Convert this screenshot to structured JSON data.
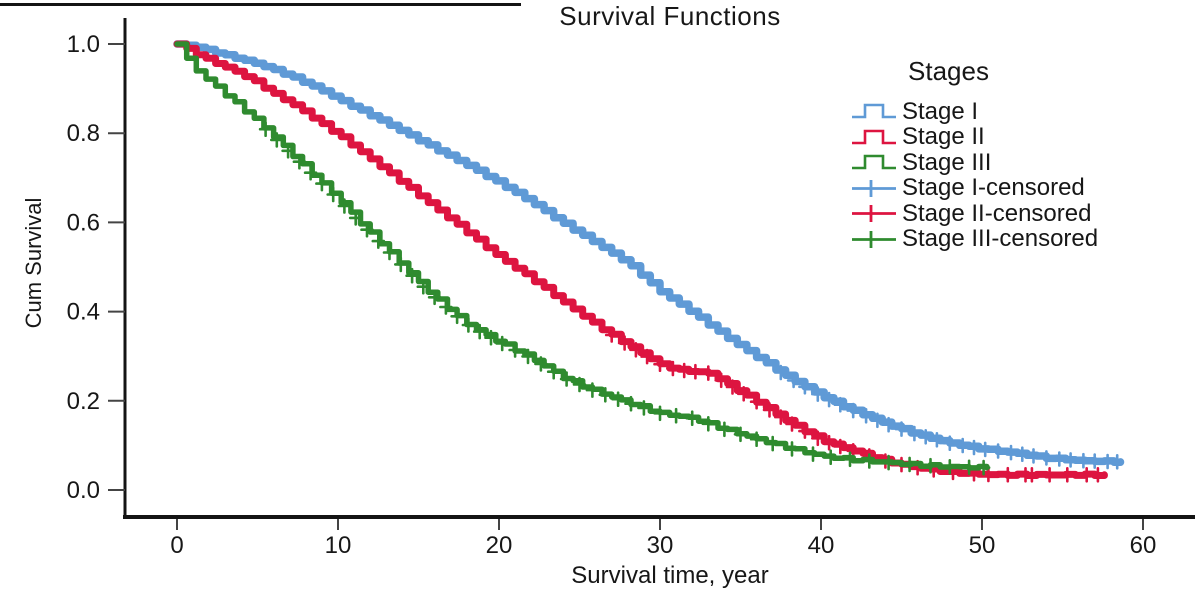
{
  "figure": {
    "title": "Survival Functions"
  },
  "legend": {
    "title": "Stages",
    "items": [
      {
        "label": "Stage I",
        "color": "#5f9ad6",
        "glyph": "step-line"
      },
      {
        "label": "Stage II",
        "color": "#dd1440",
        "glyph": "step-line"
      },
      {
        "label": "Stage III",
        "color": "#2f8b2f",
        "glyph": "step-line"
      },
      {
        "label": "Stage I-censored",
        "color": "#5f9ad6",
        "glyph": "censor-plus"
      },
      {
        "label": "Stage II-censored",
        "color": "#dd1440",
        "glyph": "censor-plus"
      },
      {
        "label": "Stage III-censored",
        "color": "#2f8b2f",
        "glyph": "censor-plus"
      }
    ]
  },
  "chart_data": {
    "type": "line",
    "subtype": "kaplan-meier-step",
    "title": "Survival Functions",
    "xlabel": "Survival time, year",
    "ylabel": "Cum Survival",
    "xlim": [
      -3,
      63
    ],
    "ylim": [
      0,
      1.05
    ],
    "grid": false,
    "legend_position": "right",
    "x_ticks": [
      0,
      10,
      20,
      30,
      40,
      50,
      60
    ],
    "x_tick_labels": [
      "0",
      "10",
      "20",
      "30",
      "40",
      "50",
      "60"
    ],
    "y_ticks": [
      0.0,
      0.2,
      0.4,
      0.6,
      0.8,
      1.0
    ],
    "y_tick_labels": [
      "0.0",
      "0.2",
      "0.4",
      "0.6",
      "0.8",
      "1.0"
    ],
    "series": [
      {
        "name": "Stage I",
        "color": "#5f9ad6",
        "width": 7.5,
        "jitter": 0.5,
        "points": [
          [
            0,
            1.0
          ],
          [
            1,
            0.995
          ],
          [
            2,
            0.985
          ],
          [
            3,
            0.975
          ],
          [
            4,
            0.965
          ],
          [
            5,
            0.955
          ],
          [
            6,
            0.942
          ],
          [
            7,
            0.928
          ],
          [
            8,
            0.912
          ],
          [
            9,
            0.895
          ],
          [
            10,
            0.876
          ],
          [
            12,
            0.84
          ],
          [
            14,
            0.803
          ],
          [
            16,
            0.765
          ],
          [
            18,
            0.728
          ],
          [
            20,
            0.688
          ],
          [
            22,
            0.645
          ],
          [
            24,
            0.597
          ],
          [
            26,
            0.553
          ],
          [
            28,
            0.508
          ],
          [
            30,
            0.445
          ],
          [
            32,
            0.397
          ],
          [
            34,
            0.345
          ],
          [
            36,
            0.298
          ],
          [
            38,
            0.252
          ],
          [
            40,
            0.211
          ],
          [
            42,
            0.178
          ],
          [
            44,
            0.149
          ],
          [
            46,
            0.124
          ],
          [
            48,
            0.105
          ],
          [
            50,
            0.092
          ],
          [
            52,
            0.083
          ],
          [
            54,
            0.072
          ],
          [
            56,
            0.066
          ],
          [
            58.6,
            0.063
          ]
        ],
        "censor_times": [
          37.5,
          38.3,
          39,
          39.8,
          40.5,
          41.2,
          42,
          42.8,
          43.5,
          44.2,
          45,
          45.8,
          46.5,
          47.2,
          48,
          48.8,
          49.5,
          50.2,
          51,
          51.8,
          52.5,
          53.2,
          54,
          54.8,
          55.5,
          56.3,
          57,
          57.8,
          58.4
        ]
      },
      {
        "name": "Stage II",
        "color": "#dd1440",
        "width": 7,
        "jitter": 0.7,
        "points": [
          [
            0,
            1.0
          ],
          [
            1,
            0.981
          ],
          [
            2,
            0.963
          ],
          [
            3,
            0.948
          ],
          [
            4,
            0.932
          ],
          [
            5,
            0.912
          ],
          [
            6,
            0.888
          ],
          [
            7,
            0.868
          ],
          [
            8,
            0.845
          ],
          [
            9,
            0.82
          ],
          [
            10,
            0.796
          ],
          [
            12,
            0.742
          ],
          [
            14,
            0.688
          ],
          [
            16,
            0.633
          ],
          [
            18,
            0.578
          ],
          [
            20,
            0.522
          ],
          [
            22,
            0.474
          ],
          [
            24,
            0.421
          ],
          [
            26,
            0.37
          ],
          [
            28,
            0.325
          ],
          [
            30,
            0.282
          ],
          [
            31,
            0.27
          ],
          [
            33,
            0.262
          ],
          [
            34,
            0.242
          ],
          [
            36,
            0.198
          ],
          [
            38,
            0.152
          ],
          [
            40,
            0.112
          ],
          [
            42,
            0.088
          ],
          [
            44,
            0.065
          ],
          [
            45,
            0.057
          ],
          [
            46,
            0.05
          ],
          [
            47,
            0.045
          ],
          [
            48,
            0.04
          ],
          [
            50,
            0.035
          ],
          [
            52,
            0.034
          ],
          [
            57.6,
            0.034
          ]
        ],
        "censor_times": [
          27,
          27.8,
          28.5,
          29.2,
          30,
          30.8,
          31.5,
          32.2,
          33,
          33.8,
          34.5,
          35.2,
          36,
          36.8,
          37.5,
          38.2,
          39,
          39.8,
          40.5,
          41.2,
          42,
          43,
          44,
          45,
          46,
          47,
          48.2,
          49.5,
          50.4,
          51.6,
          52.7,
          53.1,
          54.2,
          55.3,
          56.5,
          57.2
        ]
      },
      {
        "name": "Stage III",
        "color": "#2f8b2f",
        "width": 5.5,
        "jitter": 1.1,
        "points": [
          [
            0,
            1.0
          ],
          [
            0.5,
            0.972
          ],
          [
            1,
            0.946
          ],
          [
            2,
            0.916
          ],
          [
            3,
            0.886
          ],
          [
            4,
            0.856
          ],
          [
            5,
            0.826
          ],
          [
            6,
            0.792
          ],
          [
            7,
            0.757
          ],
          [
            8,
            0.722
          ],
          [
            9,
            0.687
          ],
          [
            10,
            0.652
          ],
          [
            11,
            0.614
          ],
          [
            12,
            0.576
          ],
          [
            13,
            0.54
          ],
          [
            14,
            0.502
          ],
          [
            15,
            0.466
          ],
          [
            16,
            0.432
          ],
          [
            17,
            0.401
          ],
          [
            18,
            0.372
          ],
          [
            19,
            0.351
          ],
          [
            20,
            0.332
          ],
          [
            22,
            0.296
          ],
          [
            24,
            0.252
          ],
          [
            26,
            0.221
          ],
          [
            28,
            0.196
          ],
          [
            30,
            0.172
          ],
          [
            32,
            0.161
          ],
          [
            34,
            0.136
          ],
          [
            36,
            0.114
          ],
          [
            38,
            0.094
          ],
          [
            40,
            0.076
          ],
          [
            42,
            0.068
          ],
          [
            44,
            0.062
          ],
          [
            46,
            0.056
          ],
          [
            48,
            0.052
          ],
          [
            50.3,
            0.05
          ]
        ],
        "censor_times": [
          5.5,
          6.2,
          6.9,
          7.6,
          8.3,
          9,
          9.7,
          10.4,
          11.1,
          11.8,
          12.5,
          13.2,
          13.9,
          14.6,
          15.3,
          16,
          16.7,
          17.4,
          18.1,
          18.8,
          19.5,
          20.2,
          21,
          21.8,
          22.6,
          23.4,
          24.2,
          25,
          25.8,
          26.6,
          27.4,
          28.2,
          29,
          30,
          31,
          32,
          33,
          34,
          35,
          36,
          37,
          38.2,
          39.5,
          40.6,
          41.8,
          43,
          44.2,
          45.5,
          46.8,
          48,
          49.2,
          50.1
        ]
      }
    ]
  }
}
